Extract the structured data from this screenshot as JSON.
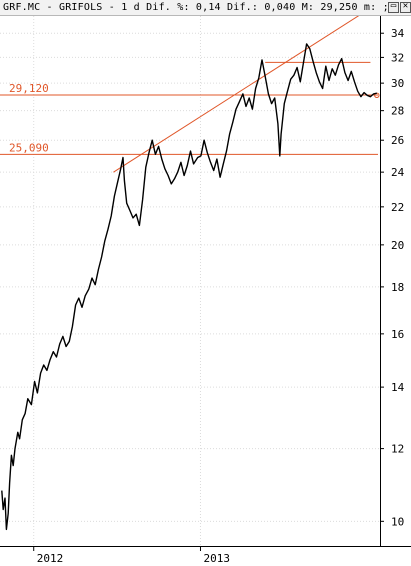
{
  "header": {
    "title": "GRF.MC - GRIFOLS -",
    "interval": "1 d",
    "dif_pct": "Dif. %: 0,14",
    "dif_abs": "Dif.: 0,040",
    "last": "M: 29,250",
    "more": "m: ;",
    "restore_icon": "restore-window-icon",
    "close_icon": "close-window-icon"
  },
  "colors": {
    "price": "#000000",
    "drawing": "#e0572a",
    "grid": "#dcdcdc",
    "background": "#ffffff"
  },
  "chart_data": {
    "type": "line",
    "scale": "log",
    "ylim": [
      9.4,
      35.5
    ],
    "yticks": [
      10,
      12,
      14,
      16,
      18,
      20,
      22,
      24,
      26,
      28,
      30,
      32,
      34
    ],
    "xlim": [
      "2011-10-20",
      "2014-01-31"
    ],
    "xticks": [
      {
        "label": "2012",
        "date": "2012-01-02"
      },
      {
        "label": "2013",
        "date": "2013-01-02"
      }
    ],
    "grid": true,
    "series": [
      {
        "x": [
          "2011-10-24",
          "2011-10-27",
          "2011-10-31",
          "2011-11-03",
          "2011-11-07",
          "2011-11-10",
          "2011-11-14",
          "2011-11-18",
          "2011-11-22",
          "2011-11-28",
          "2011-12-02",
          "2011-12-08",
          "2011-12-14",
          "2011-12-20",
          "2011-12-28",
          "2012-01-04",
          "2012-01-10",
          "2012-01-17",
          "2012-01-24",
          "2012-01-31",
          "2012-02-07",
          "2012-02-14",
          "2012-02-21",
          "2012-02-28",
          "2012-03-06",
          "2012-03-13",
          "2012-03-20",
          "2012-03-27",
          "2012-04-03",
          "2012-04-10",
          "2012-04-17",
          "2012-04-24",
          "2012-05-02",
          "2012-05-09",
          "2012-05-16",
          "2012-05-23",
          "2012-05-30",
          "2012-06-06",
          "2012-06-13",
          "2012-06-20",
          "2012-06-27",
          "2012-07-04",
          "2012-07-11",
          "2012-07-16",
          "2012-07-19",
          "2012-07-24",
          "2012-07-31",
          "2012-08-07",
          "2012-08-14",
          "2012-08-21",
          "2012-08-28",
          "2012-09-04",
          "2012-09-11",
          "2012-09-18",
          "2012-09-25",
          "2012-10-02",
          "2012-10-09",
          "2012-10-16",
          "2012-10-23",
          "2012-10-30",
          "2012-11-06",
          "2012-11-13",
          "2012-11-20",
          "2012-11-27",
          "2012-12-04",
          "2012-12-11",
          "2012-12-18",
          "2012-12-27",
          "2013-01-03",
          "2013-01-10",
          "2013-01-17",
          "2013-01-24",
          "2013-01-31",
          "2013-02-07",
          "2013-02-14",
          "2013-02-21",
          "2013-02-28",
          "2013-03-07",
          "2013-03-14",
          "2013-03-21",
          "2013-03-28",
          "2013-04-05",
          "2013-04-12",
          "2013-04-19",
          "2013-04-26",
          "2013-05-03",
          "2013-05-10",
          "2013-05-17",
          "2013-05-24",
          "2013-05-31",
          "2013-06-07",
          "2013-06-14",
          "2013-06-21",
          "2013-06-25",
          "2013-06-28",
          "2013-07-05",
          "2013-07-12",
          "2013-07-19",
          "2013-07-26",
          "2013-08-02",
          "2013-08-09",
          "2013-08-16",
          "2013-08-23",
          "2013-08-30",
          "2013-09-06",
          "2013-09-13",
          "2013-09-20",
          "2013-09-27",
          "2013-10-04",
          "2013-10-11",
          "2013-10-18",
          "2013-10-25",
          "2013-11-01",
          "2013-11-08",
          "2013-11-15",
          "2013-11-22",
          "2013-11-29",
          "2013-12-06",
          "2013-12-13",
          "2013-12-20",
          "2013-12-27",
          "2014-01-03",
          "2014-01-10",
          "2014-01-17",
          "2014-01-24"
        ],
        "values": [
          10.8,
          10.3,
          10.6,
          9.8,
          10.2,
          11.0,
          11.8,
          11.5,
          12.0,
          12.5,
          12.3,
          12.9,
          13.1,
          13.6,
          13.4,
          14.2,
          13.8,
          14.5,
          14.8,
          14.6,
          15.0,
          15.3,
          15.1,
          15.6,
          15.9,
          15.5,
          15.7,
          16.3,
          17.2,
          17.5,
          17.1,
          17.6,
          17.9,
          18.4,
          18.1,
          18.8,
          19.4,
          20.2,
          20.8,
          21.5,
          22.6,
          23.4,
          24.2,
          24.9,
          23.5,
          22.2,
          21.8,
          21.4,
          21.6,
          21.0,
          22.4,
          24.3,
          25.2,
          26.0,
          25.1,
          25.6,
          24.8,
          24.2,
          23.8,
          23.3,
          23.6,
          24.0,
          24.6,
          23.8,
          24.4,
          25.3,
          24.5,
          24.9,
          25.0,
          26.0,
          25.2,
          24.6,
          24.1,
          24.8,
          23.7,
          24.5,
          25.3,
          26.4,
          27.2,
          28.1,
          28.6,
          29.2,
          28.3,
          28.9,
          28.1,
          29.6,
          30.4,
          31.8,
          30.5,
          29.2,
          28.5,
          28.9,
          27.1,
          25.0,
          26.4,
          28.5,
          29.4,
          30.3,
          30.6,
          31.2,
          30.1,
          31.6,
          33.1,
          32.7,
          31.7,
          30.8,
          30.1,
          29.6,
          31.3,
          30.2,
          31.1,
          30.6,
          31.4,
          31.9,
          30.8,
          30.2,
          30.9,
          30.1,
          29.4,
          29.0,
          29.3,
          29.1,
          29.0,
          29.2,
          29.25
        ]
      }
    ],
    "level_lines": [
      {
        "label": "29,120",
        "value": 29.12
      },
      {
        "label": "25,090",
        "value": 25.09
      }
    ],
    "trend_lines": [
      {
        "from": {
          "date": "2012-06-25",
          "value": 24.0
        },
        "to": {
          "date": "2013-12-18",
          "value": 35.6
        }
      },
      {
        "from": {
          "date": "2013-05-24",
          "value": 31.6
        },
        "to": {
          "date": "2014-01-10",
          "value": 31.6
        }
      }
    ],
    "markers": [
      {
        "date": "2014-01-24",
        "value": 29.1
      }
    ]
  }
}
